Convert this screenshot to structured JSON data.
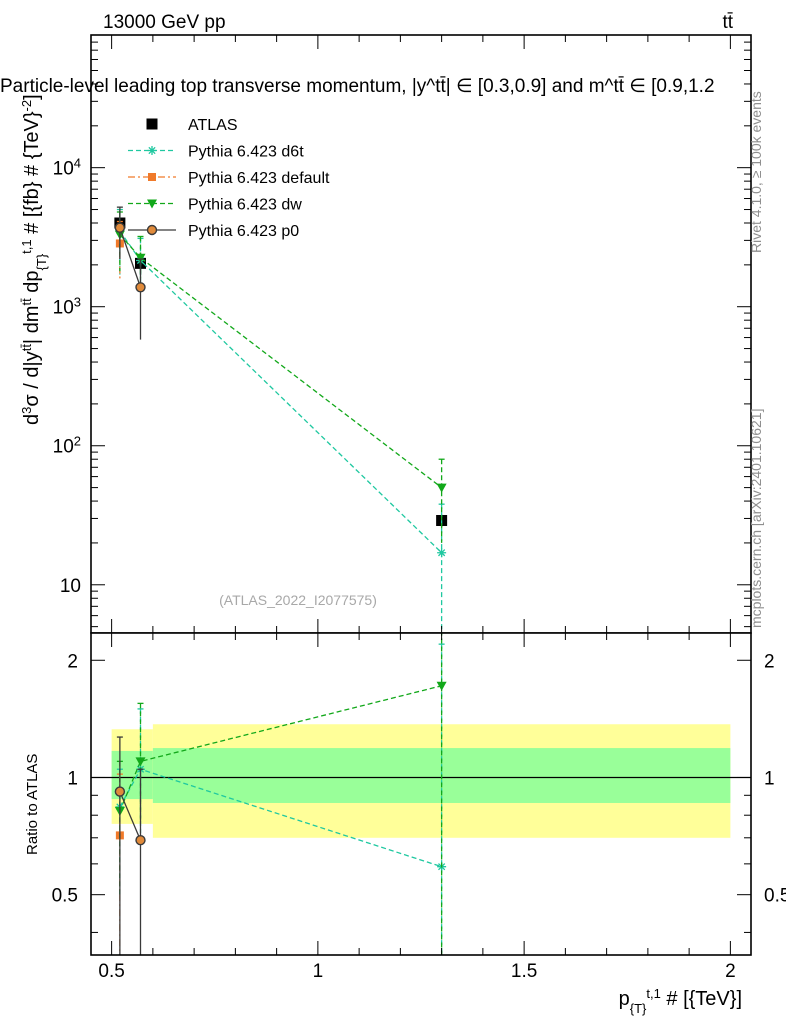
{
  "header": {
    "energy_label": "13000 GeV pp",
    "process_label": "tt̄",
    "plot_title": "Particle-level leading top transverse momentum, |y^tt̄| ∈ [0.3,0.9] and m^tt̄ ∈ [0.9,1.2",
    "watermark": "(ATLAS_2022_I2077575)",
    "side_label_rivet": "Rivet 4.1.0, ≥ 100k events",
    "side_label_mcplots": "mcplots.cern.ch [arXiv:2401.10621]"
  },
  "colors": {
    "atlas": "#000000",
    "d6t": "#1fc8a0",
    "default": "#f07a2a",
    "dw": "#12a81a",
    "p0": "#3a3a3a",
    "band_outer": "#ffff99",
    "band_inner": "#99ff99"
  },
  "chart_data": [
    {
      "type": "scatter",
      "panel": "main",
      "title": "Particle-level leading top transverse momentum, |y^tt̄| ∈ [0.3,0.9] and m^tt̄ ∈ [0.9,1.2",
      "xlabel": "p_{T}^{t,1} # [{TeV}]",
      "ylabel": "d³σ / d|y^tt̄| dm^tt̄ dp_{T}^{t,1} # [{fb} # {TeV}^-2]",
      "xlim": [
        0.45,
        2.05
      ],
      "ylim": [
        4.5,
        90000
      ],
      "yscale": "log",
      "legend_position": "top-left",
      "y_ticks": [
        {
          "value": 10,
          "label": "10"
        },
        {
          "value": 100,
          "label": "10",
          "exp": "2"
        },
        {
          "value": 1000,
          "label": "10",
          "exp": "3"
        },
        {
          "value": 10000,
          "label": "10",
          "exp": "4"
        }
      ],
      "series": [
        {
          "name": "ATLAS",
          "key": "atlas",
          "marker": "square",
          "line": "none",
          "x": [
            0.52,
            0.57,
            1.3
          ],
          "y": [
            4000,
            2050,
            29
          ],
          "yerr_low": [
            3300,
            1700,
            26
          ],
          "yerr_high": [
            4900,
            2450,
            32
          ]
        },
        {
          "name": "Pythia 6.423 d6t",
          "key": "d6t",
          "marker": "star",
          "line": "dashed",
          "x": [
            0.52,
            0.57,
            1.3
          ],
          "y": [
            3500,
            2150,
            17
          ],
          "yerr_low": [
            1700,
            1500,
            0.1
          ],
          "yerr_high": [
            5000,
            3100,
            38
          ]
        },
        {
          "name": "Pythia 6.423 default",
          "key": "default",
          "marker": "square-small",
          "line": "dashdot",
          "x": [
            0.52
          ],
          "y": [
            2850
          ],
          "yerr_low": [
            1600
          ],
          "yerr_high": [
            4100
          ]
        },
        {
          "name": "Pythia 6.423 dw",
          "key": "dw",
          "marker": "triangle-down",
          "line": "dashed",
          "x": [
            0.52,
            0.57,
            1.3
          ],
          "y": [
            3300,
            2250,
            50
          ],
          "yerr_low": [
            1800,
            1600,
            20
          ],
          "yerr_high": [
            4800,
            3200,
            80
          ]
        },
        {
          "name": "Pythia 6.423 p0",
          "key": "p0",
          "marker": "circle-open",
          "line": "solid",
          "x": [
            0.52,
            0.57
          ],
          "y": [
            3700,
            1380
          ],
          "yerr_low": [
            2200,
            580
          ],
          "yerr_high": [
            5200,
            2200
          ]
        }
      ]
    },
    {
      "type": "scatter",
      "panel": "ratio",
      "xlabel": "p_{T}^{t,1} # [{TeV}]",
      "ylabel": "Ratio to ATLAS",
      "xlim": [
        0.45,
        2.05
      ],
      "ylim": [
        0.35,
        2.35
      ],
      "yscale": "log",
      "x_ticks": [
        {
          "value": 0.5,
          "label": "0.5"
        },
        {
          "value": 1,
          "label": "1"
        },
        {
          "value": 1.5,
          "label": "1.5"
        },
        {
          "value": 2,
          "label": "2"
        }
      ],
      "y_ticks": [
        {
          "value": 0.5,
          "label": "0.5"
        },
        {
          "value": 1,
          "label": "1"
        },
        {
          "value": 2,
          "label": "2"
        }
      ],
      "bands": [
        {
          "x0": 0.5,
          "x1": 0.6,
          "outer": [
            0.76,
            1.33
          ],
          "inner": [
            0.88,
            1.17
          ]
        },
        {
          "x0": 0.6,
          "x1": 2.0,
          "outer": [
            0.7,
            1.37
          ],
          "inner": [
            0.86,
            1.19
          ]
        }
      ],
      "series": [
        {
          "key": "d6t",
          "x": [
            0.52,
            0.57,
            1.3
          ],
          "y": [
            0.84,
            1.05,
            0.59
          ],
          "yerr_low": [
            0.5,
            0.72,
            0.3
          ],
          "yerr_high": [
            1.05,
            1.5,
            2.2
          ]
        },
        {
          "key": "default",
          "x": [
            0.52
          ],
          "y": [
            0.71
          ],
          "yerr_low": [
            0.35
          ],
          "yerr_high": [
            1.02
          ]
        },
        {
          "key": "dw",
          "x": [
            0.52,
            0.57,
            1.3
          ],
          "y": [
            0.82,
            1.1,
            1.72
          ],
          "yerr_low": [
            0.5,
            0.78,
            0.3
          ],
          "yerr_high": [
            1.1,
            1.55,
            2.5
          ]
        },
        {
          "key": "p0",
          "x": [
            0.52,
            0.57
          ],
          "y": [
            0.92,
            0.69
          ],
          "yerr_low": [
            0.3,
            0.3
          ],
          "yerr_high": [
            1.27,
            1.05
          ]
        }
      ]
    }
  ]
}
